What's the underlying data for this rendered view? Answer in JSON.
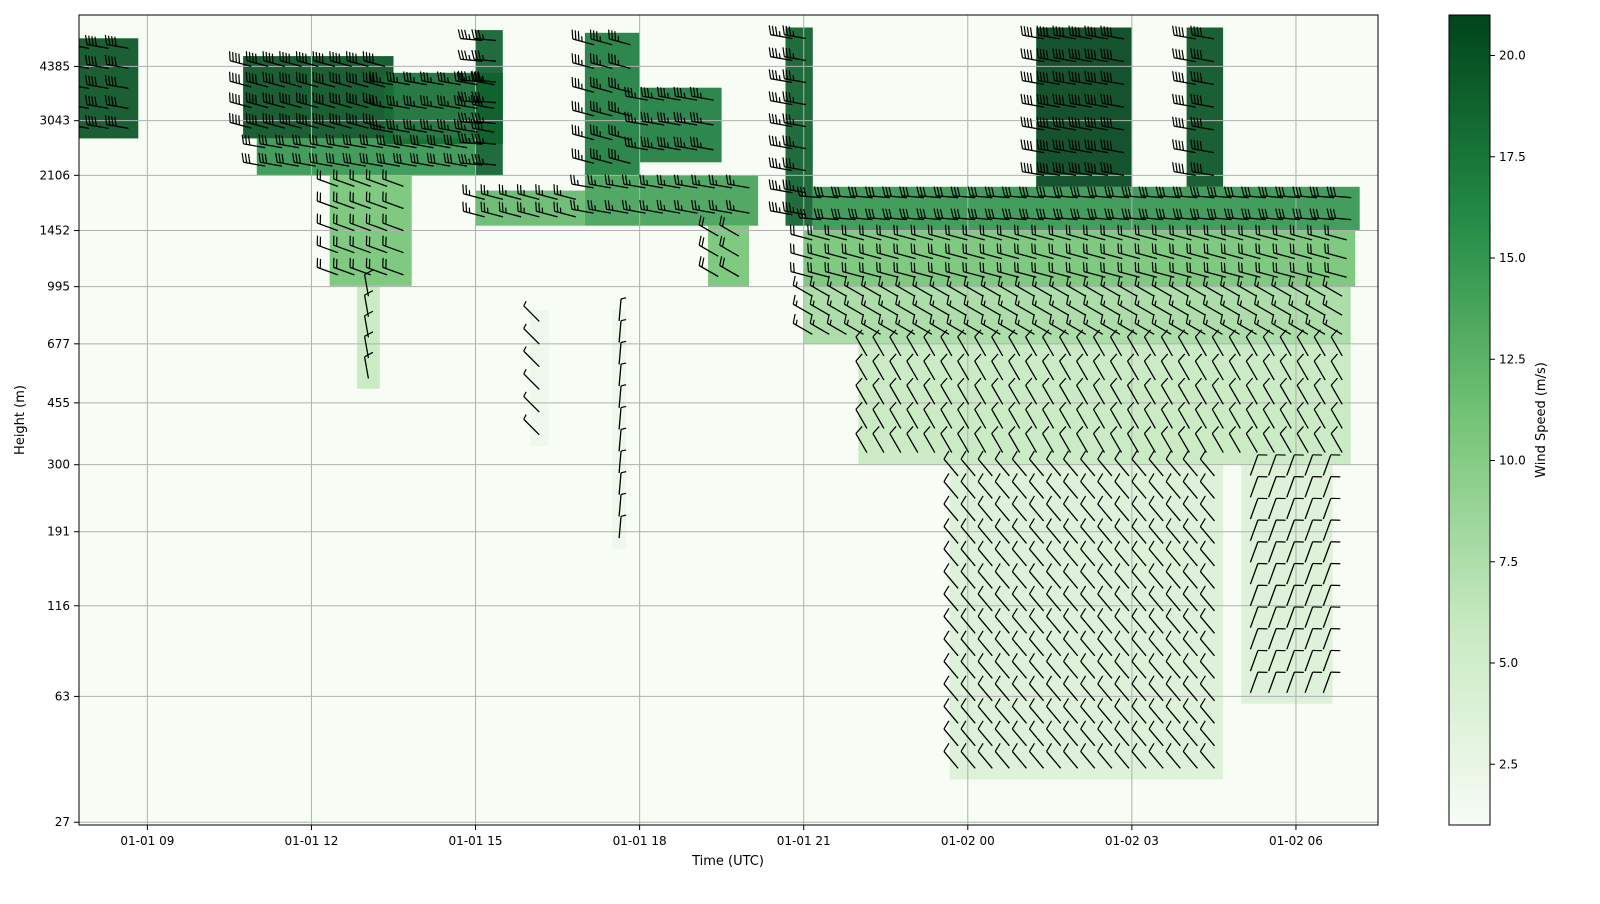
{
  "chart_data": {
    "type": "heatmap",
    "subtype": "wind-profile-with-barbs",
    "title": "",
    "xlabel": "Time (UTC)",
    "ylabel": "Height (m)",
    "x_scale": "time",
    "y_scale": "log",
    "xlim": [
      "2025-01-01T07:45",
      "2025-01-02T07:30"
    ],
    "ylim": [
      26.5,
      6200
    ],
    "x_ticks": [
      {
        "value": "2025-01-01T09:00",
        "label": "01-01 09"
      },
      {
        "value": "2025-01-01T12:00",
        "label": "01-01 12"
      },
      {
        "value": "2025-01-01T15:00",
        "label": "01-01 15"
      },
      {
        "value": "2025-01-01T18:00",
        "label": "01-01 18"
      },
      {
        "value": "2025-01-01T21:00",
        "label": "01-01 21"
      },
      {
        "value": "2025-01-02T00:00",
        "label": "01-02 00"
      },
      {
        "value": "2025-01-02T03:00",
        "label": "01-02 03"
      },
      {
        "value": "2025-01-02T06:00",
        "label": "01-02 06"
      }
    ],
    "y_ticks": [
      27,
      63,
      116,
      191,
      300,
      455,
      677,
      995,
      1452,
      2106,
      3043,
      4385
    ],
    "grid": true,
    "colormap": "Greens",
    "colorbar": {
      "label": "Wind Speed (m/s)",
      "range": [
        1.0,
        21.0
      ],
      "ticks": [
        2.5,
        5.0,
        7.5,
        10.0,
        12.5,
        15.0,
        17.5,
        20.0
      ],
      "tick_labels": [
        "2.5",
        "5.0",
        "7.5",
        "10.0",
        "12.5",
        "15.0",
        "17.5",
        "20.0"
      ]
    },
    "colors": {
      "low": "#f7fcf5",
      "mid": "#74c476",
      "high": "#00441b",
      "barb": "#000000",
      "grid": "#b0b0b0"
    },
    "wind_regions": [
      {
        "t0": "2025-01-01T07:45",
        "t1": "2025-01-01T08:50",
        "h0": 2700,
        "h1": 5300,
        "speed": 20,
        "dir": 280
      },
      {
        "t0": "2025-01-01T10:45",
        "t1": "2025-01-01T13:30",
        "h0": 2700,
        "h1": 4700,
        "speed": 20,
        "dir": 285
      },
      {
        "t0": "2025-01-01T11:00",
        "t1": "2025-01-01T15:00",
        "h0": 2106,
        "h1": 2700,
        "speed": 15,
        "dir": 280
      },
      {
        "t0": "2025-01-01T13:20",
        "t1": "2025-01-01T15:30",
        "h0": 2600,
        "h1": 4200,
        "speed": 18,
        "dir": 280
      },
      {
        "t0": "2025-01-01T15:00",
        "t1": "2025-01-01T15:30",
        "h0": 2106,
        "h1": 5600,
        "speed": 19,
        "dir": 275
      },
      {
        "t0": "2025-01-01T12:20",
        "t1": "2025-01-01T13:50",
        "h0": 1000,
        "h1": 2106,
        "speed": 11,
        "dir": 290
      },
      {
        "t0": "2025-01-01T12:50",
        "t1": "2025-01-01T13:15",
        "h0": 500,
        "h1": 1000,
        "speed": 6,
        "dir": 350
      },
      {
        "t0": "2025-01-01T15:00",
        "t1": "2025-01-01T17:00",
        "h0": 1500,
        "h1": 1900,
        "speed": 12,
        "dir": 285
      },
      {
        "t0": "2025-01-01T17:00",
        "t1": "2025-01-01T18:00",
        "h0": 2106,
        "h1": 5500,
        "speed": 17,
        "dir": 285
      },
      {
        "t0": "2025-01-01T18:00",
        "t1": "2025-01-01T19:30",
        "h0": 2300,
        "h1": 3800,
        "speed": 17,
        "dir": 280
      },
      {
        "t0": "2025-01-01T17:00",
        "t1": "2025-01-01T20:10",
        "h0": 1500,
        "h1": 2106,
        "speed": 14,
        "dir": 280
      },
      {
        "t0": "2025-01-01T19:15",
        "t1": "2025-01-01T20:00",
        "h0": 995,
        "h1": 1500,
        "speed": 11,
        "dir": 300
      },
      {
        "t0": "2025-01-01T20:40",
        "t1": "2025-01-01T21:10",
        "h0": 1500,
        "h1": 5700,
        "speed": 19,
        "dir": 280
      },
      {
        "t0": "2025-01-01T21:10",
        "t1": "2025-01-02T07:10",
        "h0": 1452,
        "h1": 1950,
        "speed": 15,
        "dir": 275
      },
      {
        "t0": "2025-01-01T21:00",
        "t1": "2025-01-02T07:05",
        "h0": 995,
        "h1": 1452,
        "speed": 11,
        "dir": 285
      },
      {
        "t0": "2025-01-01T21:00",
        "t1": "2025-01-02T07:00",
        "h0": 677,
        "h1": 995,
        "speed": 8,
        "dir": 300
      },
      {
        "t0": "2025-01-01T22:00",
        "t1": "2025-01-02T07:00",
        "h0": 300,
        "h1": 677,
        "speed": 6,
        "dir": 330
      },
      {
        "t0": "2025-01-01T23:40",
        "t1": "2025-01-02T04:40",
        "h0": 36,
        "h1": 300,
        "speed": 4,
        "dir": 320
      },
      {
        "t0": "2025-01-02T05:00",
        "t1": "2025-01-02T06:40",
        "h0": 60,
        "h1": 300,
        "speed": 4,
        "dir": 20
      },
      {
        "t0": "2025-01-02T01:15",
        "t1": "2025-01-02T03:00",
        "h0": 1950,
        "h1": 5700,
        "speed": 21,
        "dir": 280
      },
      {
        "t0": "2025-01-02T04:00",
        "t1": "2025-01-02T04:40",
        "h0": 1950,
        "h1": 5700,
        "speed": 20,
        "dir": 280
      },
      {
        "t0": "2025-01-01T16:00",
        "t1": "2025-01-01T16:20",
        "h0": 340,
        "h1": 850,
        "speed": 2,
        "dir": 315
      },
      {
        "t0": "2025-01-01T17:30",
        "t1": "2025-01-01T17:45",
        "h0": 170,
        "h1": 850,
        "speed": 2,
        "dir": 5
      }
    ]
  }
}
